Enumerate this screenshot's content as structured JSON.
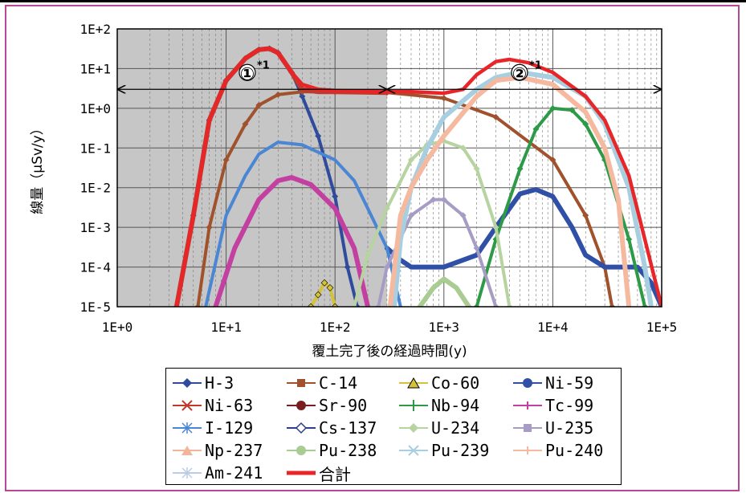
{
  "chart_data": {
    "type": "line",
    "title": "",
    "xlabel": "覆土完了後の経過時間(y)",
    "ylabel": "線量（μSv/y）",
    "xscale": "log",
    "yscale": "log",
    "xlim": [
      1,
      100000
    ],
    "ylim": [
      1e-05,
      100
    ],
    "x_tick_labels": [
      "1E+0",
      "1E+1",
      "1E+2",
      "1E+3",
      "1E+4",
      "1E+5"
    ],
    "y_tick_labels": [
      "1E-5",
      "1E-4",
      "1E-3",
      "1E-2",
      "1E-1",
      "1E+0",
      "1E+1",
      "1E+2"
    ],
    "grid": true,
    "legend_position": "bottom",
    "shaded_region": {
      "x_from": 1,
      "x_to": 300
    },
    "annotations": [
      {
        "label": "①",
        "sup": "*1",
        "x_range": [
          1,
          300
        ],
        "y": 3
      },
      {
        "label": "②",
        "sup": "*1",
        "x_range": [
          300,
          100000
        ],
        "y": 3
      }
    ],
    "series": [
      {
        "name": "H-3",
        "color": "#2f4b9c",
        "marker": "diamond",
        "points": [
          [
            3.5,
            1e-05
          ],
          [
            5,
            0.002
          ],
          [
            7,
            0.5
          ],
          [
            10,
            5
          ],
          [
            15,
            18
          ],
          [
            20,
            30
          ],
          [
            25,
            32
          ],
          [
            30,
            25
          ],
          [
            40,
            8
          ],
          [
            50,
            2
          ],
          [
            70,
            0.2
          ],
          [
            100,
            0.006
          ],
          [
            130,
            0.0001
          ],
          [
            160,
            1e-05
          ]
        ]
      },
      {
        "name": "C-14",
        "color": "#a0522d",
        "marker": "square",
        "points": [
          [
            5.5,
            1e-05
          ],
          [
            7,
            0.001
          ],
          [
            10,
            0.05
          ],
          [
            15,
            0.4
          ],
          [
            20,
            1.2
          ],
          [
            30,
            2.2
          ],
          [
            50,
            2.6
          ],
          [
            100,
            2.6
          ],
          [
            300,
            2.5
          ],
          [
            1000,
            1.8
          ],
          [
            3000,
            0.6
          ],
          [
            10000,
            0.05
          ],
          [
            20000,
            0.002
          ],
          [
            30000,
            0.0001
          ],
          [
            35000,
            1e-05
          ]
        ]
      },
      {
        "name": "Co-60",
        "color": "#d4c23a",
        "marker": "triangle",
        "points": [
          [
            60,
            1e-05
          ],
          [
            70,
            2e-05
          ],
          [
            80,
            4e-05
          ],
          [
            90,
            3e-05
          ],
          [
            100,
            1e-05
          ]
        ]
      },
      {
        "name": "Ni-59",
        "color": "#3050a8",
        "marker": "circle",
        "points": [
          [
            300,
            0.0003
          ],
          [
            400,
            0.00015
          ],
          [
            500,
            0.0001
          ],
          [
            700,
            0.0001
          ],
          [
            1000,
            0.0001
          ],
          [
            2000,
            0.0002
          ],
          [
            3000,
            0.001
          ],
          [
            5000,
            0.007
          ],
          [
            7000,
            0.009
          ],
          [
            10000,
            0.006
          ],
          [
            15000,
            0.001
          ],
          [
            20000,
            0.0002
          ],
          [
            30000,
            0.0001
          ],
          [
            60000,
            0.0001
          ],
          [
            80000,
            4e-05
          ],
          [
            100000,
            1e-05
          ]
        ]
      },
      {
        "name": "Ni-63",
        "color": "#c0392b",
        "marker": "x",
        "points": [
          [
            3.5,
            1e-05
          ],
          [
            5,
            0.002
          ],
          [
            7,
            0.5
          ],
          [
            10,
            5
          ],
          [
            15,
            18
          ],
          [
            20,
            30
          ],
          [
            25,
            32
          ],
          [
            30,
            25
          ],
          [
            40,
            8
          ],
          [
            50,
            3
          ],
          [
            70,
            2.6
          ],
          [
            100,
            2.6
          ],
          [
            300,
            2.5
          ]
        ]
      },
      {
        "name": "Sr-90",
        "color": "#7a1f1f",
        "marker": "circle",
        "points": []
      },
      {
        "name": "Nb-94",
        "color": "#2e9a48",
        "marker": "plus",
        "points": [
          [
            2000,
            1e-05
          ],
          [
            3000,
            0.0005
          ],
          [
            5000,
            0.03
          ],
          [
            7000,
            0.3
          ],
          [
            10000,
            1.0
          ],
          [
            15000,
            0.9
          ],
          [
            20000,
            0.4
          ],
          [
            30000,
            0.05
          ],
          [
            50000,
            0.0005
          ],
          [
            70000,
            1e-05
          ]
        ]
      },
      {
        "name": "Tc-99",
        "color": "#c33fa0",
        "marker": "dash",
        "points": [
          [
            8,
            1e-05
          ],
          [
            12,
            0.0003
          ],
          [
            20,
            0.005
          ],
          [
            30,
            0.015
          ],
          [
            40,
            0.018
          ],
          [
            60,
            0.012
          ],
          [
            100,
            0.003
          ],
          [
            150,
            0.0003
          ],
          [
            200,
            1e-05
          ]
        ]
      },
      {
        "name": "I-129",
        "color": "#4a86d4",
        "marker": "asterisk",
        "points": [
          [
            6.5,
            1e-05
          ],
          [
            10,
            0.002
          ],
          [
            15,
            0.02
          ],
          [
            20,
            0.07
          ],
          [
            30,
            0.14
          ],
          [
            50,
            0.12
          ],
          [
            100,
            0.05
          ],
          [
            150,
            0.015
          ],
          [
            200,
            0.003
          ],
          [
            300,
            0.0003
          ],
          [
            400,
            1e-05
          ]
        ]
      },
      {
        "name": "Cs-137",
        "color": "#2c3e8c",
        "marker": "diamond-open",
        "points": []
      },
      {
        "name": "U-234",
        "color": "#b6d3a0",
        "marker": "diamond",
        "points": [
          [
            150,
            1e-05
          ],
          [
            200,
            0.0002
          ],
          [
            300,
            0.003
          ],
          [
            500,
            0.05
          ],
          [
            700,
            0.12
          ],
          [
            1000,
            0.15
          ],
          [
            1500,
            0.1
          ],
          [
            2000,
            0.03
          ],
          [
            3000,
            0.001
          ],
          [
            4000,
            1e-05
          ]
        ]
      },
      {
        "name": "U-235",
        "color": "#a79cc4",
        "marker": "square",
        "points": [
          [
            250,
            1e-05
          ],
          [
            300,
            0.0001
          ],
          [
            500,
            0.002
          ],
          [
            800,
            0.005
          ],
          [
            1000,
            0.005
          ],
          [
            1500,
            0.002
          ],
          [
            2000,
            0.0003
          ],
          [
            3000,
            1e-05
          ]
        ]
      },
      {
        "name": "Np-237",
        "color": "#f3b59a",
        "marker": "triangle",
        "points": []
      },
      {
        "name": "Pu-238",
        "color": "#a9cc92",
        "marker": "circle",
        "points": [
          [
            600,
            1e-05
          ],
          [
            800,
            3e-05
          ],
          [
            1000,
            5e-05
          ],
          [
            1300,
            3e-05
          ],
          [
            1700,
            1e-05
          ]
        ]
      },
      {
        "name": "Pu-239",
        "color": "#a8cfe0",
        "marker": "x",
        "points": [
          [
            350,
            1e-05
          ],
          [
            400,
            0.0005
          ],
          [
            500,
            0.01
          ],
          [
            700,
            0.1
          ],
          [
            1000,
            0.6
          ],
          [
            2000,
            3
          ],
          [
            3000,
            6
          ],
          [
            5000,
            8
          ],
          [
            10000,
            6
          ],
          [
            20000,
            2
          ],
          [
            30000,
            0.4
          ],
          [
            50000,
            0.01
          ],
          [
            70000,
            0.0001
          ],
          [
            80000,
            1e-05
          ]
        ]
      },
      {
        "name": "Pu-240",
        "color": "#f5b9a0",
        "marker": "dash",
        "points": [
          [
            320,
            1e-05
          ],
          [
            400,
            0.002
          ],
          [
            500,
            0.01
          ],
          [
            700,
            0.05
          ],
          [
            1000,
            0.2
          ],
          [
            2000,
            2
          ],
          [
            3000,
            5
          ],
          [
            5000,
            6
          ],
          [
            10000,
            4
          ],
          [
            20000,
            0.8
          ],
          [
            30000,
            0.1
          ],
          [
            40000,
            0.005
          ],
          [
            50000,
            1e-05
          ]
        ]
      },
      {
        "name": "Am-241",
        "color": "#bccbe8",
        "marker": "asterisk",
        "points": []
      },
      {
        "name": "合計",
        "color": "#e8262a",
        "marker": "line",
        "points": [
          [
            3.5,
            1e-05
          ],
          [
            5,
            0.002
          ],
          [
            7,
            0.5
          ],
          [
            10,
            5
          ],
          [
            15,
            18
          ],
          [
            20,
            30
          ],
          [
            25,
            32
          ],
          [
            30,
            25
          ],
          [
            40,
            8
          ],
          [
            50,
            4
          ],
          [
            70,
            3
          ],
          [
            100,
            2.8
          ],
          [
            300,
            2.6
          ],
          [
            500,
            2.6
          ],
          [
            1000,
            2.4
          ],
          [
            1500,
            3
          ],
          [
            2000,
            7
          ],
          [
            3000,
            15
          ],
          [
            4000,
            17
          ],
          [
            6000,
            14
          ],
          [
            10000,
            8
          ],
          [
            20000,
            2
          ],
          [
            30000,
            0.5
          ],
          [
            50000,
            0.02
          ],
          [
            70000,
            0.0005
          ],
          [
            100000,
            1e-05
          ]
        ]
      }
    ]
  }
}
